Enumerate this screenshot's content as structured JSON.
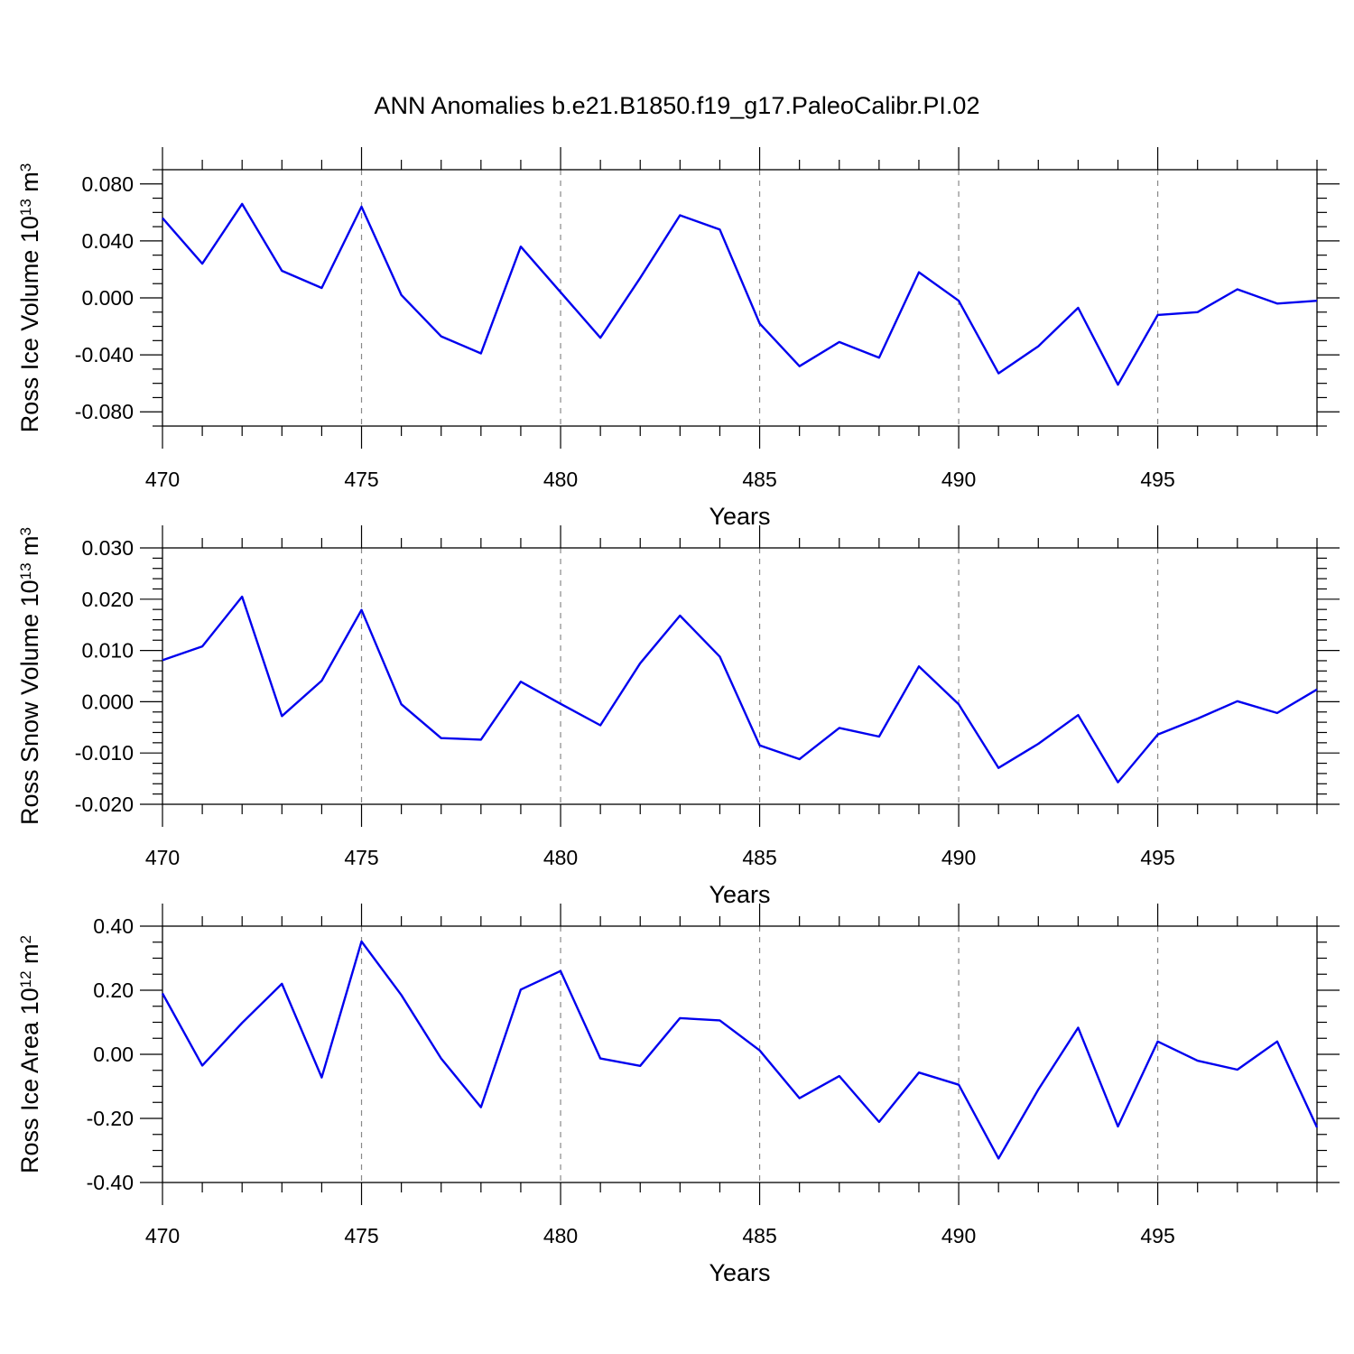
{
  "title": "ANN Anomalies b.e21.B1850.f19_g17.PaleoCalibr.PI.02",
  "line_color": "#0000ee",
  "chart_data": [
    {
      "type": "line",
      "ylabel": {
        "base": "Ross Ice Volume 10",
        "exp": "13",
        "unit": " m",
        "unit_exp": "3"
      },
      "xlabel": "Years",
      "xlim": [
        470,
        499
      ],
      "ylim": [
        -0.09,
        0.09
      ],
      "x_ticks": [
        470,
        475,
        480,
        485,
        490,
        495
      ],
      "x_tick_labels": [
        "470",
        "475",
        "480",
        "485",
        "490",
        "495"
      ],
      "y_ticks": [
        -0.08,
        -0.04,
        0.0,
        0.04,
        0.08
      ],
      "y_tick_labels": [
        "-0.080",
        "-0.040",
        "0.000",
        "0.040",
        "0.080"
      ],
      "y_minor_step": 0.01,
      "grid": "vertical dashed at major x ticks",
      "x": [
        470,
        471,
        472,
        473,
        474,
        475,
        476,
        477,
        478,
        479,
        480,
        481,
        482,
        483,
        484,
        485,
        486,
        487,
        488,
        489,
        490,
        491,
        492,
        493,
        494,
        495,
        496,
        497,
        498,
        499
      ],
      "y": [
        0.056,
        0.024,
        0.066,
        0.019,
        0.007,
        0.064,
        0.002,
        -0.027,
        -0.039,
        0.036,
        0.004,
        -0.028,
        0.014,
        0.058,
        0.048,
        -0.018,
        -0.048,
        -0.031,
        -0.042,
        0.018,
        -0.002,
        -0.053,
        -0.034,
        -0.007,
        -0.061,
        -0.012,
        -0.01,
        0.006,
        -0.004,
        -0.002
      ]
    },
    {
      "type": "line",
      "ylabel": {
        "base": "Ross Snow Volume 10",
        "exp": "13",
        "unit": " m",
        "unit_exp": "3"
      },
      "xlabel": "Years",
      "xlim": [
        470,
        499
      ],
      "ylim": [
        -0.02,
        0.03
      ],
      "x_ticks": [
        470,
        475,
        480,
        485,
        490,
        495
      ],
      "x_tick_labels": [
        "470",
        "475",
        "480",
        "485",
        "490",
        "495"
      ],
      "y_ticks": [
        -0.02,
        -0.01,
        0.0,
        0.01,
        0.02,
        0.03
      ],
      "y_tick_labels": [
        "-0.020",
        "-0.010",
        "0.000",
        "0.010",
        "0.020",
        "0.030"
      ],
      "y_minor_step": 0.002,
      "grid": "vertical dashed at major x ticks",
      "x": [
        470,
        471,
        472,
        473,
        474,
        475,
        476,
        477,
        478,
        479,
        480,
        481,
        482,
        483,
        484,
        485,
        486,
        487,
        488,
        489,
        490,
        491,
        492,
        493,
        494,
        495,
        496,
        497,
        498,
        499
      ],
      "y": [
        0.0081,
        0.0108,
        0.0205,
        -0.0028,
        0.0041,
        0.0179,
        -0.0005,
        -0.0071,
        -0.0074,
        0.0039,
        -0.0004,
        -0.0046,
        0.0075,
        0.0168,
        0.0088,
        -0.0085,
        -0.0112,
        -0.0051,
        -0.0068,
        0.0069,
        -0.0005,
        -0.0129,
        -0.0082,
        -0.0026,
        -0.0157,
        -0.0064,
        -0.0033,
        0.0001,
        -0.0022,
        0.0024
      ]
    },
    {
      "type": "line",
      "ylabel": {
        "base": "Ross Ice Area 10",
        "exp": "12",
        "unit": " m",
        "unit_exp": "2"
      },
      "xlabel": "Years",
      "xlim": [
        470,
        499
      ],
      "ylim": [
        -0.4,
        0.4
      ],
      "x_ticks": [
        470,
        475,
        480,
        485,
        490,
        495
      ],
      "x_tick_labels": [
        "470",
        "475",
        "480",
        "485",
        "490",
        "495"
      ],
      "y_ticks": [
        -0.4,
        -0.2,
        0.0,
        0.2,
        0.4
      ],
      "y_tick_labels": [
        "-0.40",
        "-0.20",
        "0.00",
        "0.20",
        "0.40"
      ],
      "y_minor_step": 0.05,
      "grid": "vertical dashed at major x ticks",
      "x": [
        470,
        471,
        472,
        473,
        474,
        475,
        476,
        477,
        478,
        479,
        480,
        481,
        482,
        483,
        484,
        485,
        486,
        487,
        488,
        489,
        490,
        491,
        492,
        493,
        494,
        495,
        496,
        497,
        498,
        499
      ],
      "y": [
        0.19,
        -0.035,
        0.098,
        0.22,
        -0.072,
        0.352,
        0.185,
        -0.013,
        -0.165,
        0.202,
        0.26,
        -0.013,
        -0.036,
        0.113,
        0.106,
        0.012,
        -0.137,
        -0.068,
        -0.211,
        -0.057,
        -0.095,
        -0.325,
        -0.11,
        0.083,
        -0.225,
        0.04,
        -0.02,
        -0.048,
        0.04,
        -0.228
      ]
    }
  ]
}
